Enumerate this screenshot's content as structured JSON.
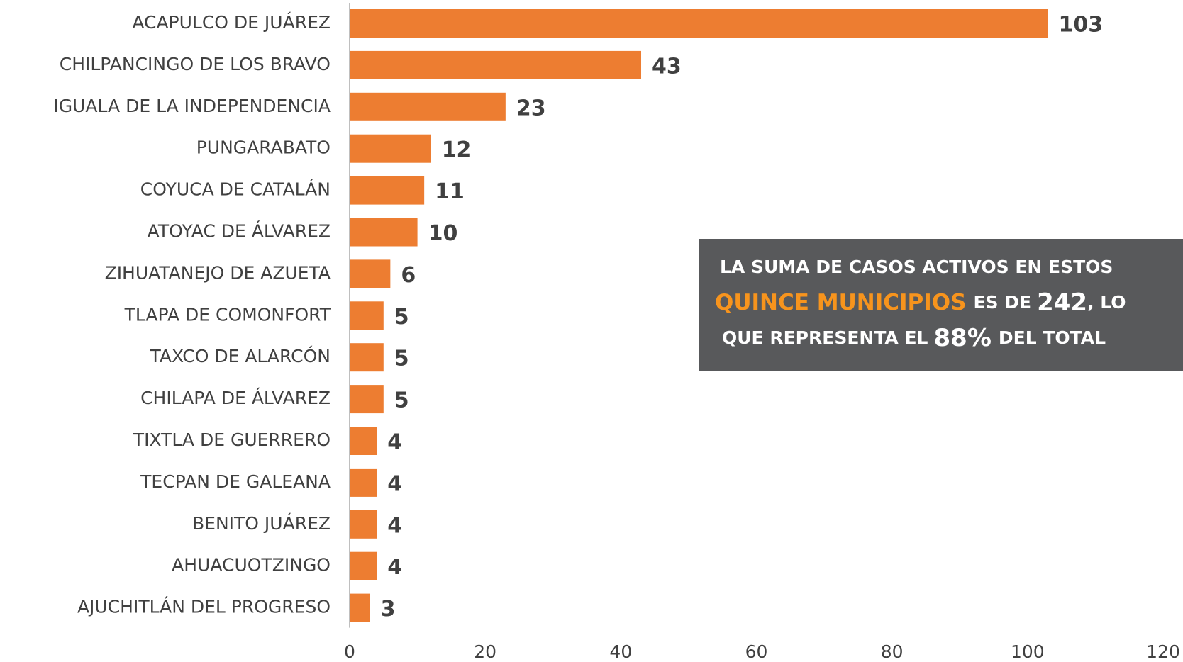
{
  "chart_data": {
    "type": "bar",
    "orientation": "horizontal",
    "categories": [
      "ACAPULCO DE JUÁREZ",
      "CHILPANCINGO DE LOS BRAVO",
      "IGUALA DE LA INDEPENDENCIA",
      "PUNGARABATO",
      "COYUCA DE CATALÁN",
      "ATOYAC DE ÁLVAREZ",
      "ZIHUATANEJO DE AZUETA",
      "TLAPA DE COMONFORT",
      "TAXCO DE ALARCÓN",
      "CHILAPA DE ÁLVAREZ",
      "TIXTLA DE GUERRERO",
      "TECPAN DE GALEANA",
      "BENITO JUÁREZ",
      "AHUACUOTZINGO",
      "AJUCHITLÁN DEL PROGRESO"
    ],
    "values": [
      103,
      43,
      23,
      12,
      11,
      10,
      6,
      5,
      5,
      5,
      4,
      4,
      4,
      4,
      3
    ],
    "color": "#ed7d31",
    "xlim": [
      0,
      120
    ],
    "xticks": [
      0,
      20,
      40,
      60,
      80,
      100,
      120
    ],
    "grid": false,
    "annotation": {
      "line1": "LA SUMA DE CASOS ACTIVOS EN ESTOS",
      "line2": [
        "QUINCE MUNICIPIOS",
        "ES DE",
        "242",
        ", LO"
      ],
      "line3": [
        "QUE REPRESENTA EL",
        "88%",
        "DEL TOTAL"
      ]
    }
  }
}
